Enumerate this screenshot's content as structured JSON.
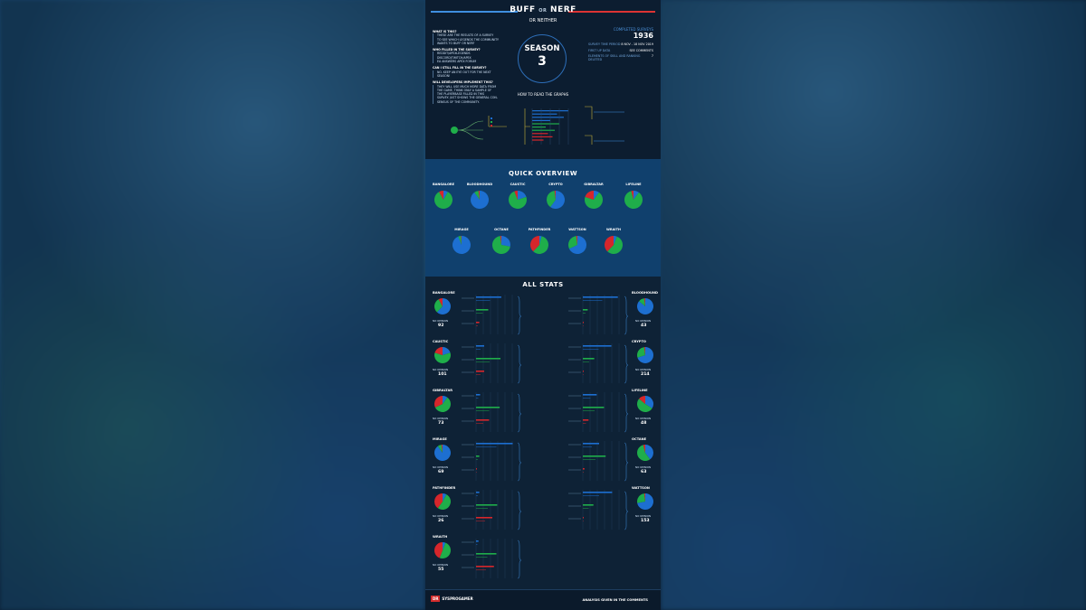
{
  "poster": {
    "title_main": "BUFF",
    "title_or": "OR",
    "title_end": "NERF",
    "subtitle": "OR NEITHER",
    "season_word": "SEASON",
    "season_number": "3",
    "completed_label": "COMPLETED SURVEYS",
    "completed_value": "1936",
    "stat_rows": [
      {
        "label": "SURVEY TIME PERIOD",
        "value": "8 NOV - 18 NOV 2019"
      },
      {
        "label": "FIRST UP DATA",
        "value": "SEE COMMENTS"
      },
      {
        "label": "ELEMENTS OF SKILL AND RANKING DELETED",
        "value": "7"
      }
    ],
    "faq": [
      {
        "q": "WHAT IS THIS?",
        "a": [
          "THESE ARE THE RESULTS OF A SURVEY",
          "TO SEE WHICH LEGENDS THE COMMUNITY",
          "WANTS TO BUFF OR NERF"
        ]
      },
      {
        "q": "WHO FILLED IN THE SURVEY?",
        "a": [
          "REDDIT/APEXLEGENDS",
          "DISCORD/TWITCH/APEX",
          "EA ANSWERS APEX FORUM"
        ]
      },
      {
        "q": "CAN I STILL FILL IN THE SURVEY?",
        "a": [
          "NO. KEEP AN EYE OUT FOR THE NEXT",
          "SEASON!"
        ]
      },
      {
        "q": "WILL DEVELOPERS IMPLEMENT THIS?",
        "a": [
          "THEY WILL USE MUCH MORE DATA FROM",
          "THE GAME, THINK ONLY A SAMPLE OF",
          "THE PLAYERBASE FILLED IN THIS",
          "SURVEY. JUST SHOWS THE GENERAL CON-",
          "SENSUS OF THE COMMUNITY."
        ]
      }
    ],
    "howto": "HOW TO READ THE GRAPHS",
    "quick_overview": "QUICK OVERVIEW",
    "all_stats": "ALL STATS",
    "no_opinion_label": "NO OPINION",
    "footer_logo_box": "DR",
    "footer_logo_text": "SYSPROGAMER",
    "footer_note": "ANALYSIS GIVEN IN THE COMMENTS"
  },
  "colors": {
    "buff": "#1d6fd1",
    "neither": "#1fae4a",
    "nerf": "#d6262b",
    "bg": "#0d1f33"
  },
  "chart_data": [
    {
      "type": "pie",
      "title": "QUICK OVERVIEW",
      "series_order": [
        "buff",
        "neither",
        "nerf"
      ],
      "legends": [
        {
          "name": "BANGALORE",
          "buff": 8,
          "neither": 84,
          "nerf": 8
        },
        {
          "name": "BLOODHOUND",
          "buff": 90,
          "neither": 8,
          "nerf": 2
        },
        {
          "name": "CAUSTIC",
          "buff": 20,
          "neither": 74,
          "nerf": 6
        },
        {
          "name": "CRYPTO",
          "buff": 60,
          "neither": 38,
          "nerf": 2
        },
        {
          "name": "GIBRALTAR",
          "buff": 10,
          "neither": 70,
          "nerf": 20
        },
        {
          "name": "LIFELINE",
          "buff": 10,
          "neither": 86,
          "nerf": 4
        },
        {
          "name": "MIRAGE",
          "buff": 94,
          "neither": 5,
          "nerf": 1
        },
        {
          "name": "OCTANE",
          "buff": 28,
          "neither": 70,
          "nerf": 2
        },
        {
          "name": "PATHFINDER",
          "buff": 4,
          "neither": 58,
          "nerf": 38
        },
        {
          "name": "WATTSON",
          "buff": 68,
          "neither": 30,
          "nerf": 2
        },
        {
          "name": "WRAITH",
          "buff": 6,
          "neither": 56,
          "nerf": 38
        }
      ]
    },
    {
      "type": "bar",
      "title": "ALL STATS",
      "legends": [
        {
          "name": "BANGALORE",
          "no_opinion": "92",
          "buff": 62,
          "neither": 30,
          "nerf": 8
        },
        {
          "name": "BLOODHOUND",
          "no_opinion": "43",
          "buff": 86,
          "neither": 12,
          "nerf": 2
        },
        {
          "name": "CAUSTIC",
          "no_opinion": "101",
          "buff": 20,
          "neither": 60,
          "nerf": 20
        },
        {
          "name": "CRYPTO",
          "no_opinion": "214",
          "buff": 70,
          "neither": 28,
          "nerf": 2
        },
        {
          "name": "GIBRALTAR",
          "no_opinion": "73",
          "buff": 10,
          "neither": 58,
          "nerf": 32
        },
        {
          "name": "LIFELINE",
          "no_opinion": "48",
          "buff": 34,
          "neither": 52,
          "nerf": 14
        },
        {
          "name": "MIRAGE",
          "no_opinion": "69",
          "buff": 90,
          "neither": 8,
          "nerf": 2
        },
        {
          "name": "OCTANE",
          "no_opinion": "63",
          "buff": 40,
          "neither": 56,
          "nerf": 4
        },
        {
          "name": "PATHFINDER",
          "no_opinion": "26",
          "buff": 8,
          "neither": 52,
          "nerf": 40
        },
        {
          "name": "WATTSON",
          "no_opinion": "153",
          "buff": 72,
          "neither": 26,
          "nerf": 2
        },
        {
          "name": "WRAITH",
          "no_opinion": "55",
          "buff": 6,
          "neither": 50,
          "nerf": 44
        }
      ]
    }
  ]
}
